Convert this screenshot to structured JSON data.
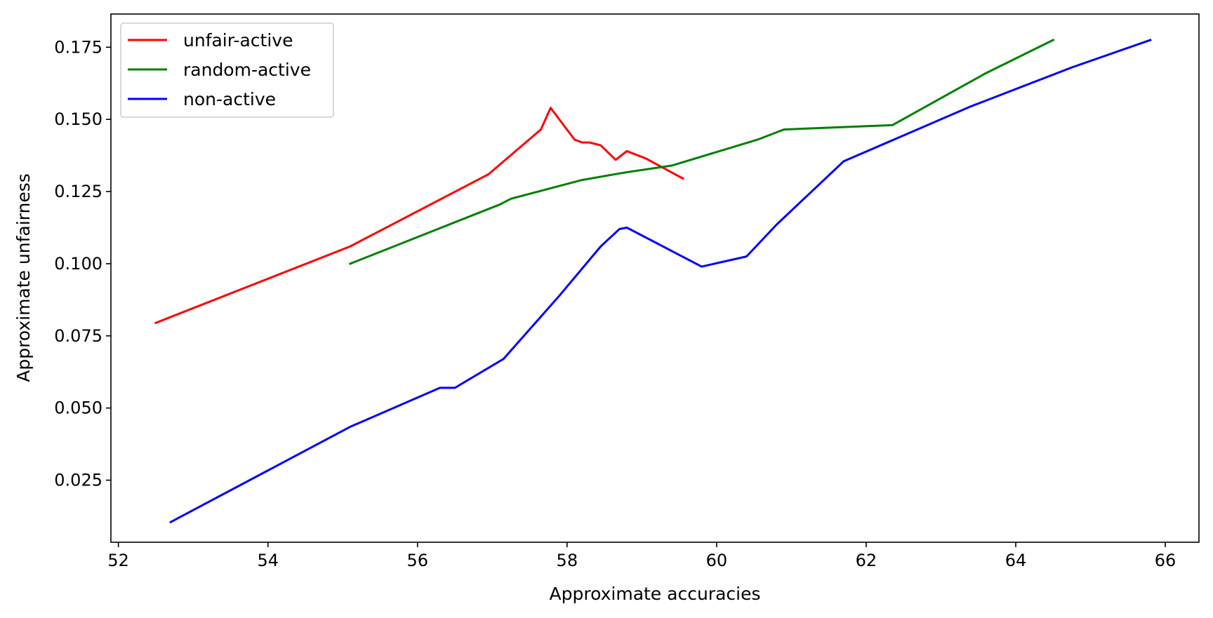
{
  "chart_data": {
    "type": "line",
    "xlabel": "Approximate accuracies",
    "ylabel": "Approximate unfairness",
    "xlim": [
      51.9,
      66.45
    ],
    "ylim": [
      0.0035,
      0.1865
    ],
    "xticks": [
      52,
      54,
      56,
      58,
      60,
      62,
      64,
      66
    ],
    "yticks": [
      0.025,
      0.05,
      0.075,
      0.1,
      0.125,
      0.15,
      0.175
    ],
    "xtick_labels": [
      "52",
      "54",
      "56",
      "58",
      "60",
      "62",
      "64",
      "66"
    ],
    "ytick_labels": [
      "0.025",
      "0.050",
      "0.075",
      "0.100",
      "0.125",
      "0.150",
      "0.175"
    ],
    "grid": false,
    "legend_position": "top-left",
    "series": [
      {
        "name": "unfair-active",
        "color": "#ff0000",
        "points": [
          [
            52.5,
            0.0795
          ],
          [
            55.1,
            0.106
          ],
          [
            56.95,
            0.131
          ],
          [
            57.65,
            0.1465
          ],
          [
            57.78,
            0.154
          ],
          [
            58.1,
            0.143
          ],
          [
            58.2,
            0.142
          ],
          [
            58.3,
            0.142
          ],
          [
            58.45,
            0.141
          ],
          [
            58.65,
            0.136
          ],
          [
            58.8,
            0.139
          ],
          [
            59.05,
            0.1365
          ],
          [
            59.55,
            0.1295
          ]
        ]
      },
      {
        "name": "random-active",
        "color": "#008000",
        "points": [
          [
            55.1,
            0.1
          ],
          [
            57.1,
            0.1205
          ],
          [
            57.25,
            0.1225
          ],
          [
            58.2,
            0.129
          ],
          [
            58.75,
            0.1315
          ],
          [
            59.4,
            0.134
          ],
          [
            60.55,
            0.143
          ],
          [
            60.9,
            0.1465
          ],
          [
            62.35,
            0.148
          ],
          [
            63.6,
            0.166
          ],
          [
            64.5,
            0.1775
          ]
        ]
      },
      {
        "name": "non-active",
        "color": "#0000ff",
        "points": [
          [
            52.7,
            0.0105
          ],
          [
            55.1,
            0.0435
          ],
          [
            56.3,
            0.057
          ],
          [
            56.5,
            0.057
          ],
          [
            57.15,
            0.067
          ],
          [
            57.9,
            0.089
          ],
          [
            58.45,
            0.106
          ],
          [
            58.7,
            0.112
          ],
          [
            58.8,
            0.1125
          ],
          [
            59.8,
            0.099
          ],
          [
            60.4,
            0.1025
          ],
          [
            60.8,
            0.1135
          ],
          [
            61.7,
            0.1355
          ],
          [
            63.4,
            0.1545
          ],
          [
            64.75,
            0.168
          ],
          [
            65.8,
            0.1775
          ]
        ]
      }
    ]
  }
}
